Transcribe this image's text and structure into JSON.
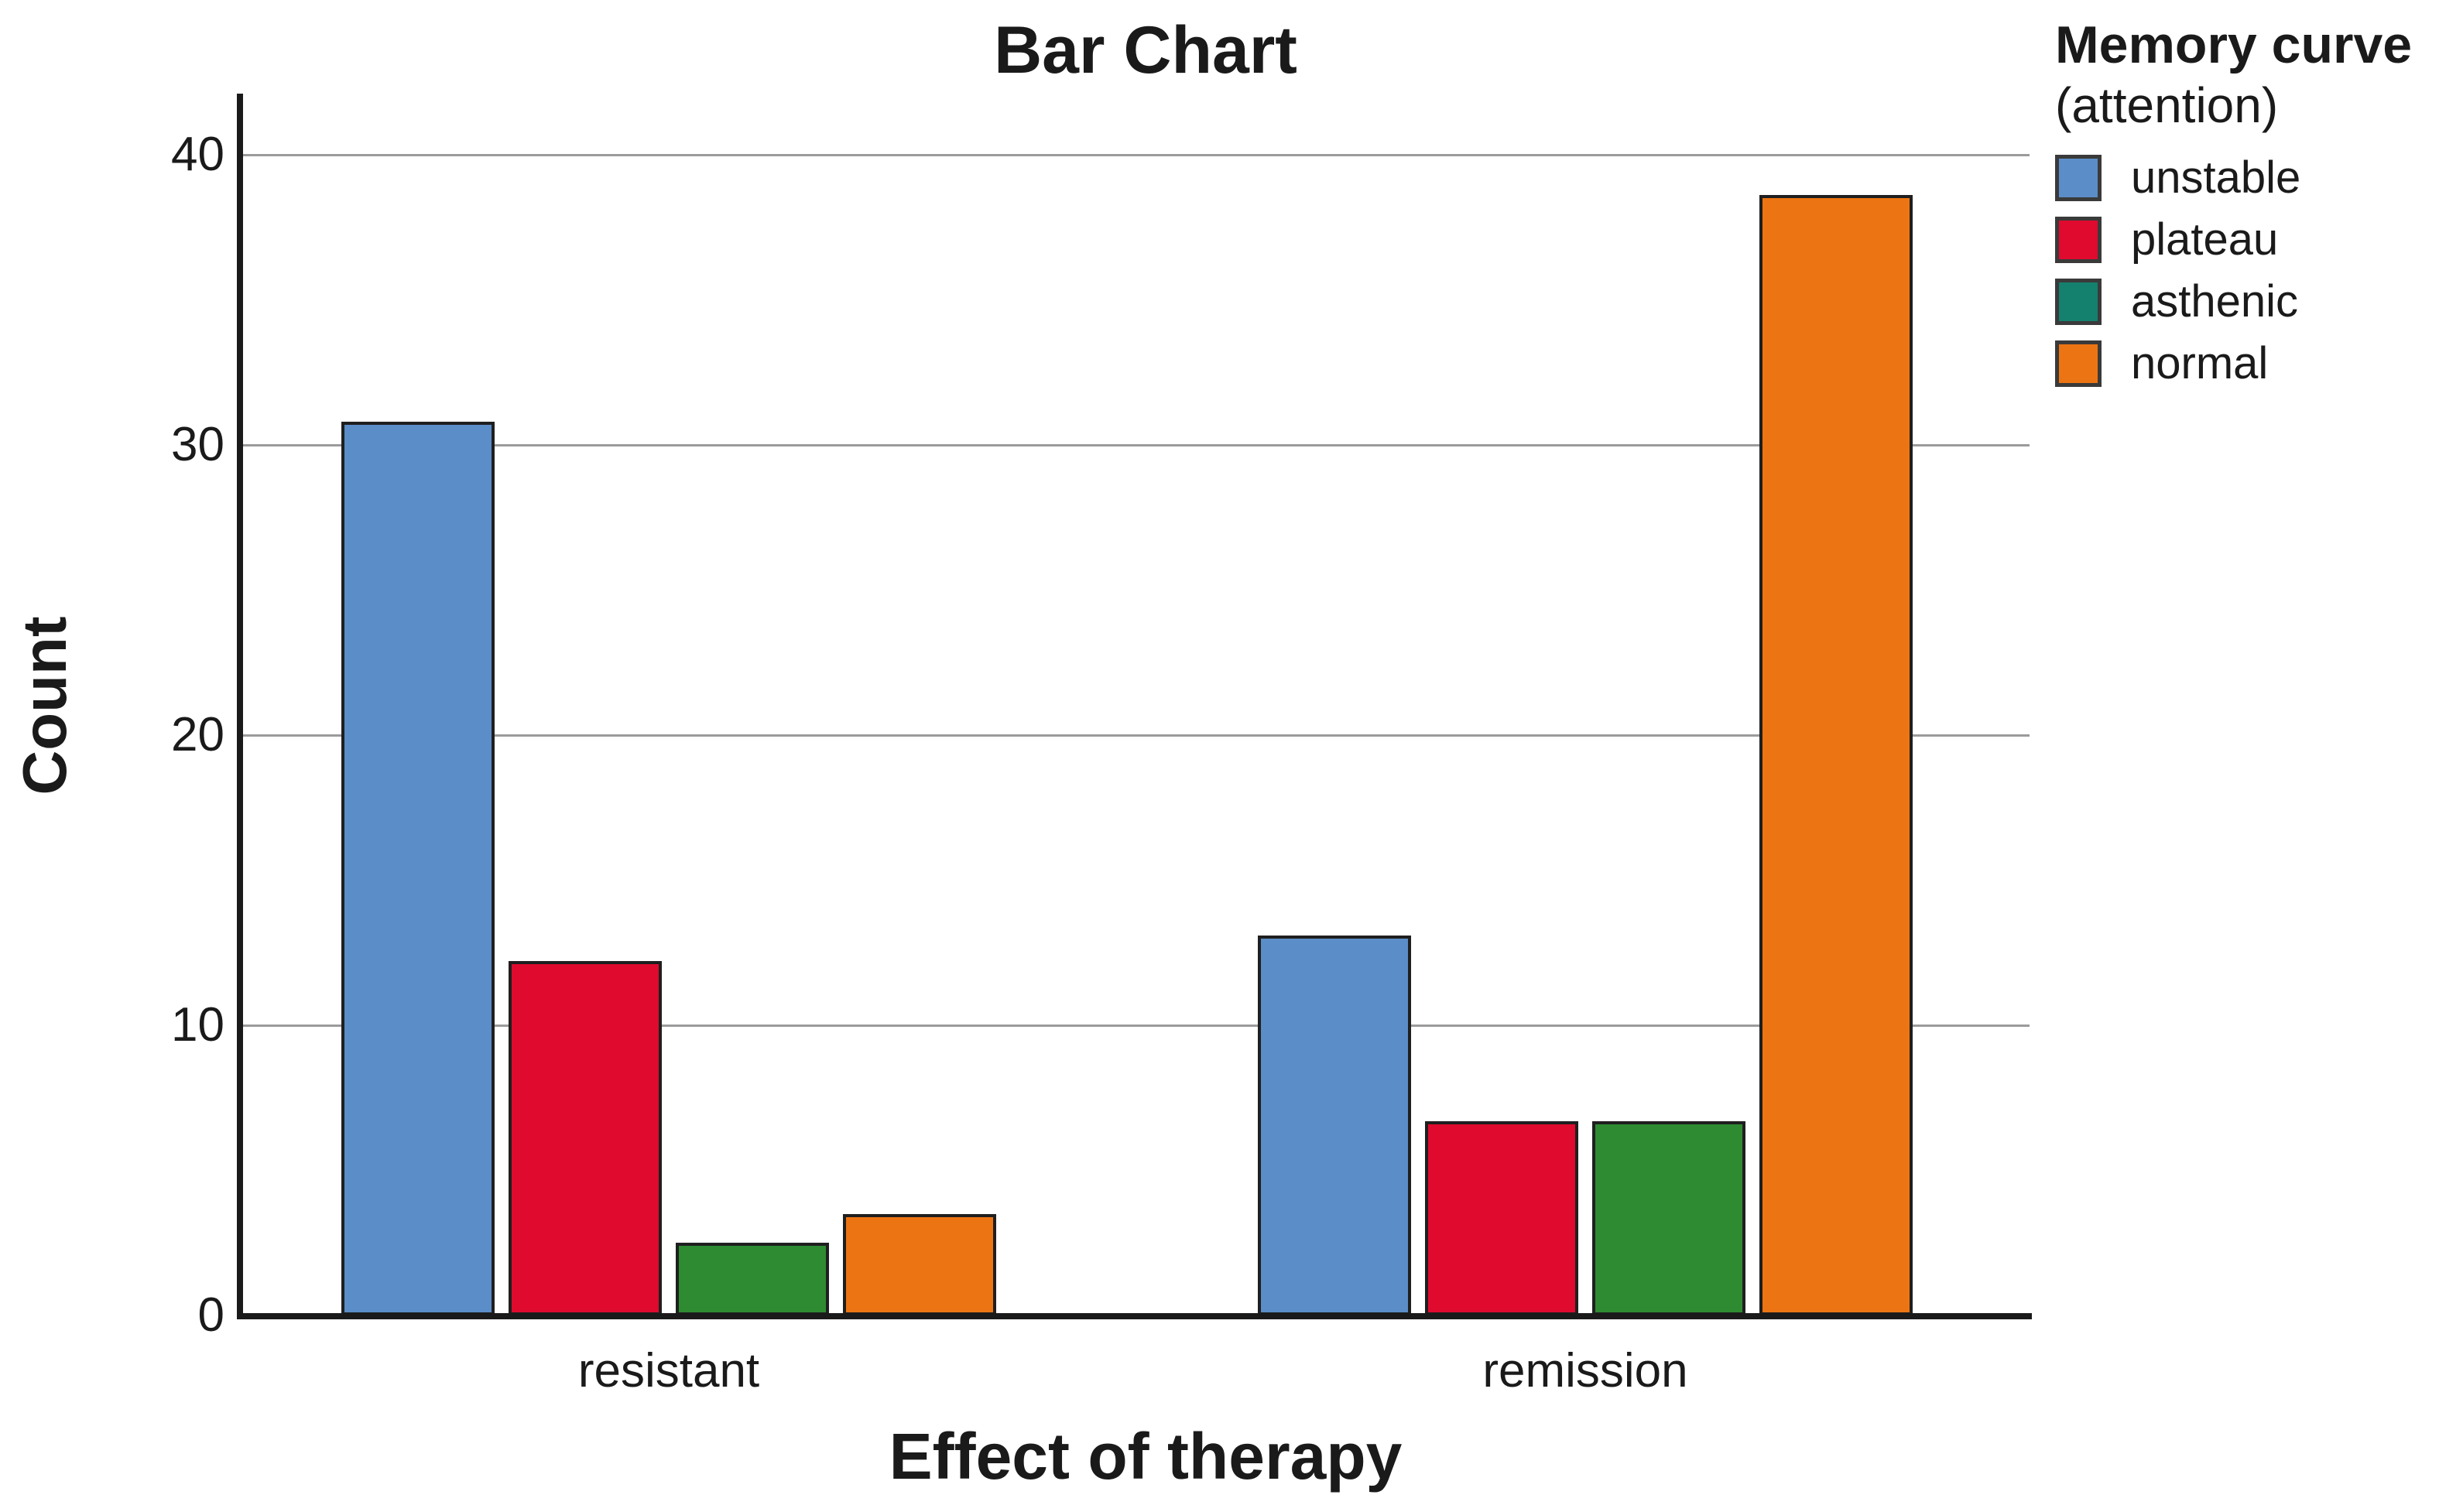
{
  "title": "Bar Chart",
  "legend": {
    "title_line1": "Memory curve",
    "title_line2": "(attention)"
  },
  "axes": {
    "y_title": "Count",
    "x_title": "Effect of therapy",
    "y_tick_labels": [
      "0",
      "10",
      "20",
      "30",
      "40"
    ],
    "x_category_labels": [
      "resistant",
      "remission"
    ]
  },
  "colors": {
    "axis": "#1a1a1a",
    "gridline": "#9b9b9b",
    "bar_border": "#1f1f1f",
    "text": "#1a1a1a"
  },
  "chart_data": {
    "type": "bar",
    "title": "Bar Chart",
    "xlabel": "Effect of therapy",
    "ylabel": "Count",
    "categories": [
      "resistant",
      "remission"
    ],
    "series": [
      {
        "name": "unstable",
        "values": [
          30.8,
          13.1
        ],
        "color": "#5B8DC8",
        "legend_color": "#5B8DC8"
      },
      {
        "name": "plateau",
        "values": [
          12.2,
          6.7
        ],
        "color": "#E00A2E",
        "legend_color": "#E00A2E"
      },
      {
        "name": "asthenic",
        "values": [
          2.5,
          6.7
        ],
        "color": "#2E8B31",
        "legend_color": "#14806E"
      },
      {
        "name": "normal",
        "values": [
          3.5,
          38.6
        ],
        "color": "#EC7412",
        "legend_color": "#EC7412"
      }
    ],
    "yticks": [
      0,
      10,
      20,
      30,
      40
    ],
    "ylim": [
      0,
      42
    ],
    "grid": "horizontal",
    "legend_title": "Memory curve (attention)",
    "legend_position": "top-right"
  }
}
